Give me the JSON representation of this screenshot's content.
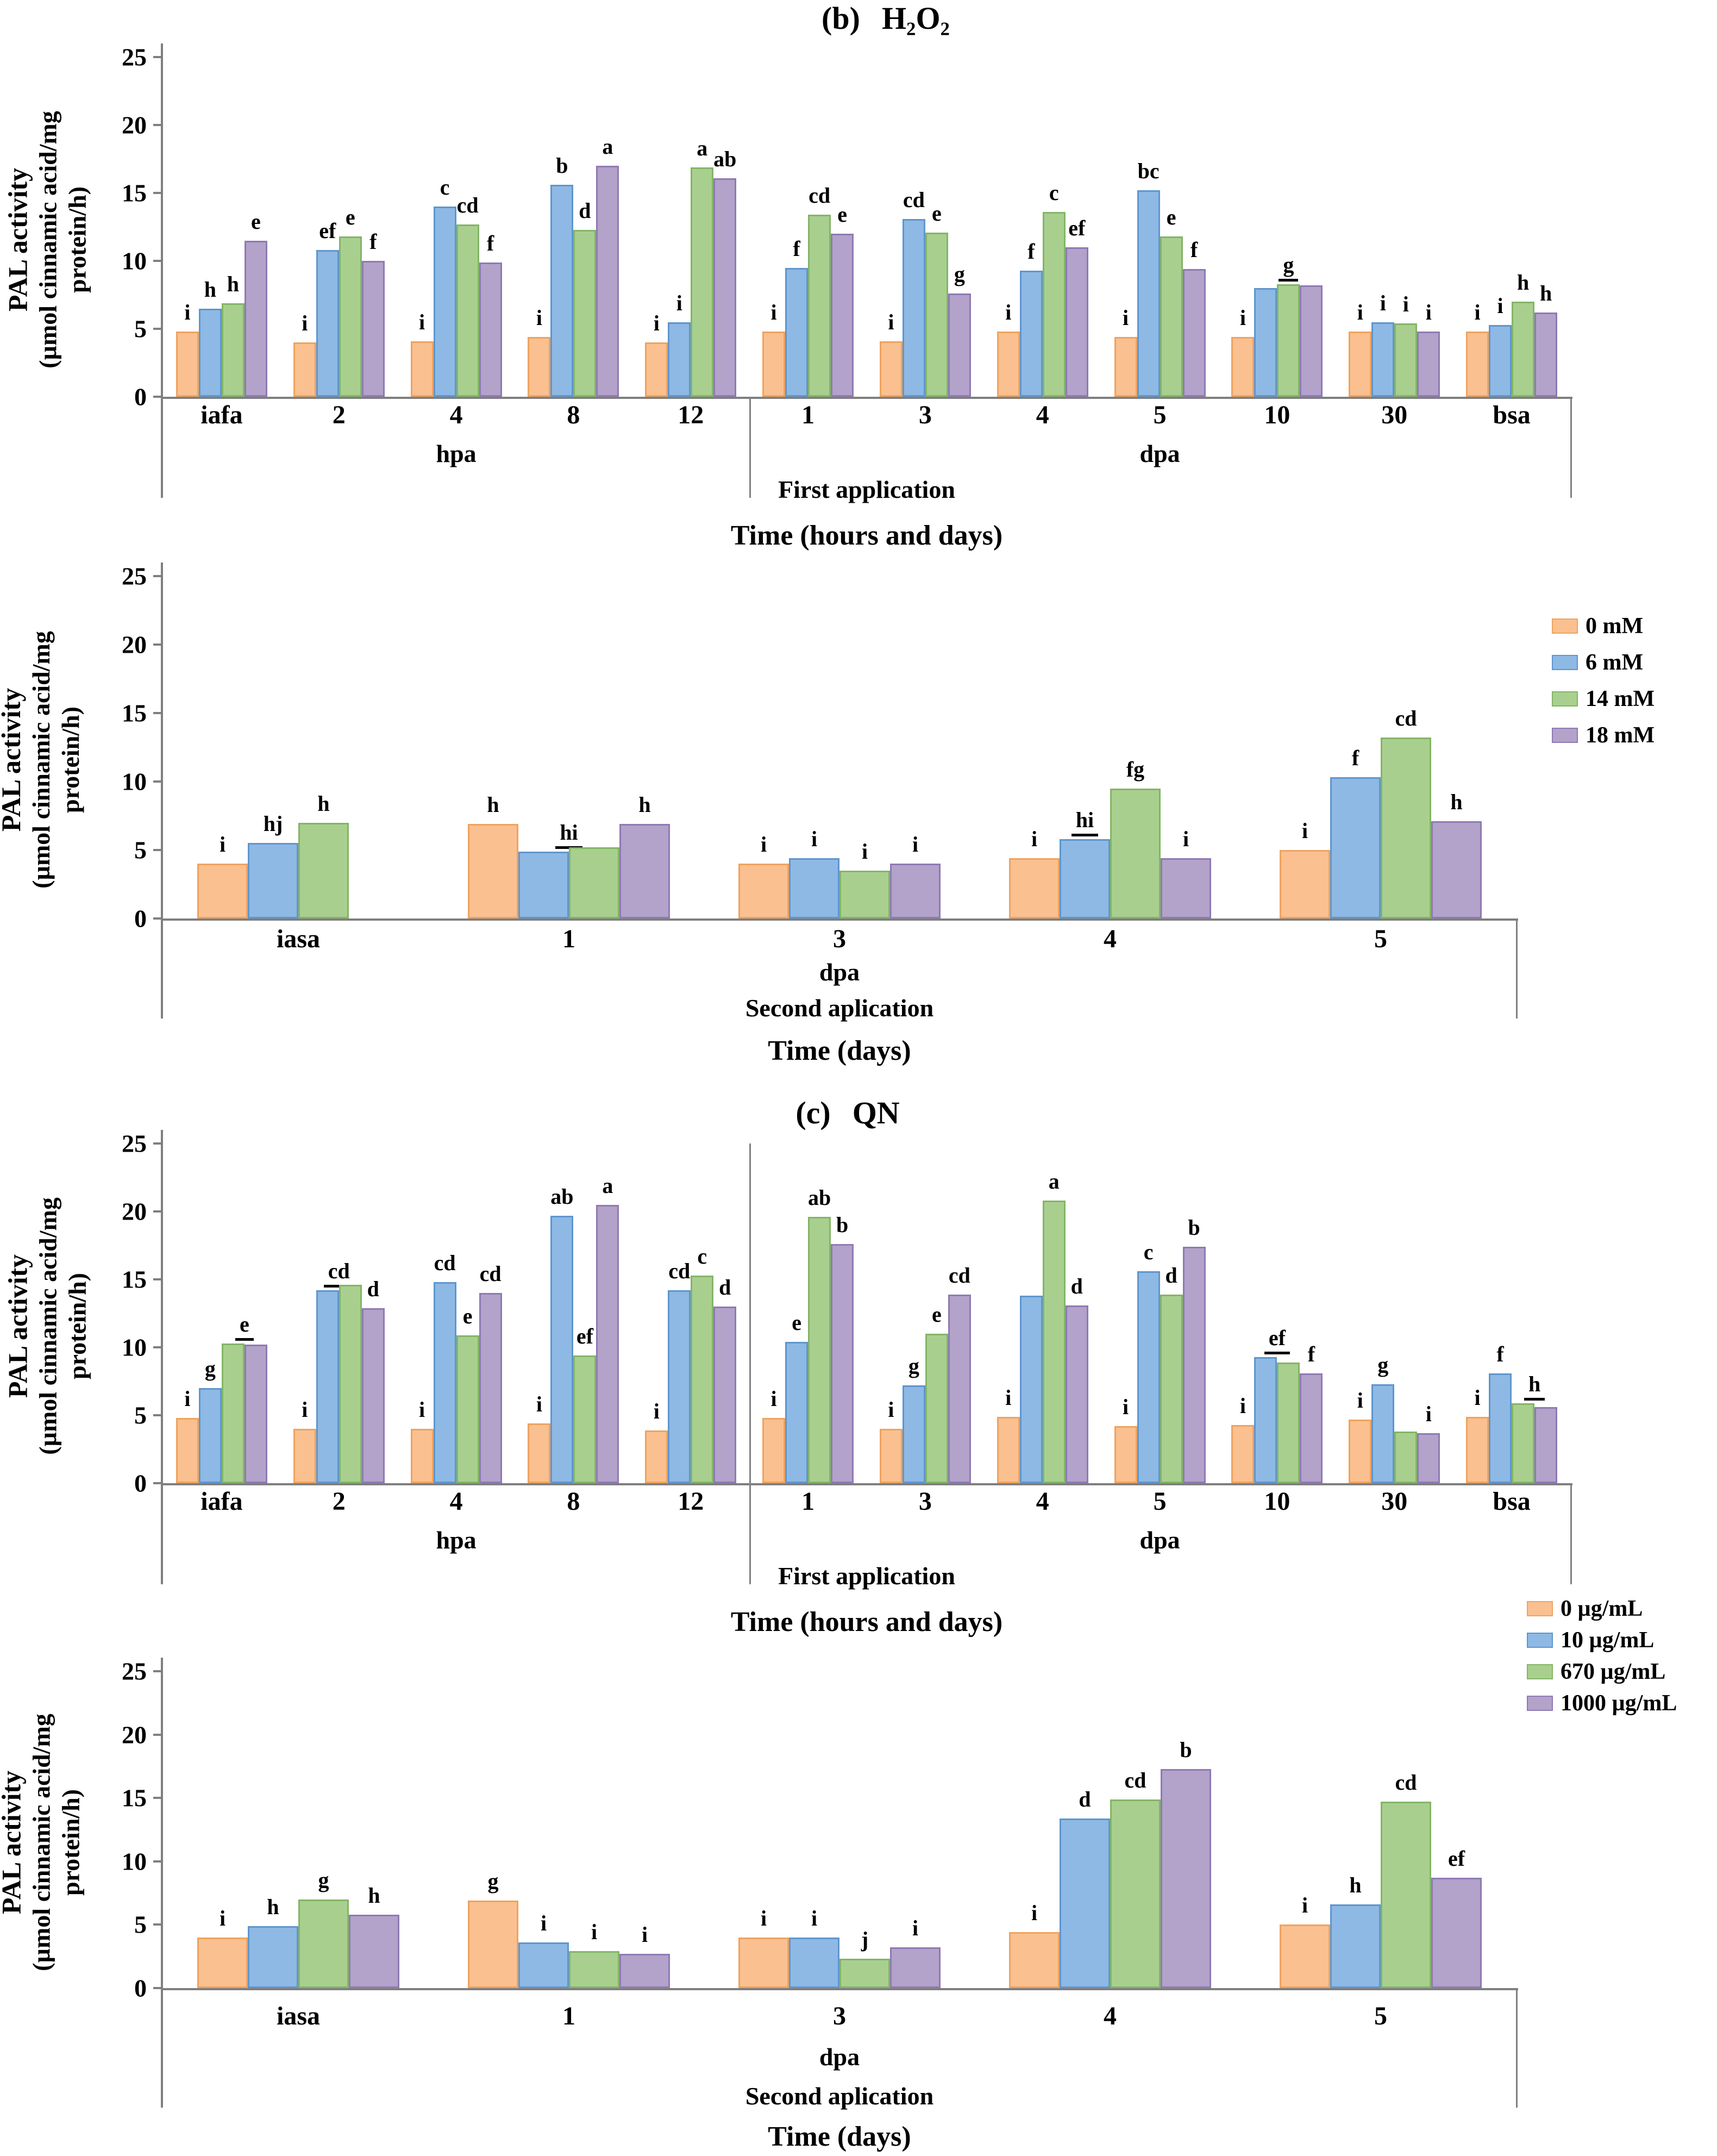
{
  "palette": {
    "fills": [
      "#FAC090",
      "#8EB9E4",
      "#A9CF8E",
      "#B3A2C9"
    ],
    "borders": [
      "#EFA35E",
      "#5E96CF",
      "#83B566",
      "#8E7AB4"
    ],
    "axis_color": "#7F7F7F",
    "text_color": "#000000"
  },
  "chart_data": [
    {
      "id": "b-first-application",
      "type": "bar",
      "panel_label": "(b)",
      "title": "H₂O₂",
      "ylabel": "PAL activity",
      "ylabel2": "(µmol cinnamic acid/mg protein/h)",
      "ylim": [
        0,
        25
      ],
      "yticks": [
        0,
        5,
        10,
        15,
        20,
        25
      ],
      "series": [
        "0 mM",
        "6 mM",
        "14 mM",
        "18 mM"
      ],
      "sections": [
        {
          "label": "hpa",
          "count": 5
        },
        {
          "label": "dpa",
          "count": 7
        }
      ],
      "application_label": "First application",
      "xlabel": "Time (hours and days)",
      "show_legend": false,
      "categories": [
        "iafa",
        "2",
        "4",
        "8",
        "12",
        "1",
        "3",
        "4",
        "5",
        "10",
        "30",
        "bsa"
      ],
      "groups": [
        {
          "cat": "iafa",
          "bars": [
            {
              "v": 4.8,
              "l": "i"
            },
            {
              "v": 6.5,
              "l": "h"
            },
            {
              "v": 6.9,
              "l": "h"
            },
            {
              "v": 11.5,
              "l": "e"
            }
          ]
        },
        {
          "cat": "2",
          "bars": [
            {
              "v": 4.0,
              "l": "i"
            },
            {
              "v": 10.8,
              "l": "ef"
            },
            {
              "v": 11.8,
              "l": "e"
            },
            {
              "v": 10.0,
              "l": "f"
            }
          ]
        },
        {
          "cat": "4",
          "bars": [
            {
              "v": 4.1,
              "l": "i"
            },
            {
              "v": 14.0,
              "l": "c"
            },
            {
              "v": 12.7,
              "l": "cd"
            },
            {
              "v": 9.9,
              "l": "f"
            }
          ]
        },
        {
          "cat": "8",
          "bars": [
            {
              "v": 4.4,
              "l": "i"
            },
            {
              "v": 15.6,
              "l": "b"
            },
            {
              "v": 12.3,
              "l": "d"
            },
            {
              "v": 17.0,
              "l": "a"
            }
          ]
        },
        {
          "cat": "12",
          "bars": [
            {
              "v": 4.0,
              "l": "i"
            },
            {
              "v": 5.5,
              "l": "i"
            },
            {
              "v": 16.9,
              "l": "a"
            },
            {
              "v": 16.1,
              "l": "ab"
            }
          ]
        },
        {
          "cat": "1",
          "bars": [
            {
              "v": 4.8,
              "l": "i"
            },
            {
              "v": 9.5,
              "l": "f"
            },
            {
              "v": 13.4,
              "l": "cd"
            },
            {
              "v": 12.0,
              "l": "e"
            }
          ]
        },
        {
          "cat": "3",
          "bars": [
            {
              "v": 4.1,
              "l": "i"
            },
            {
              "v": 13.1,
              "l": "cd"
            },
            {
              "v": 12.1,
              "l": "e"
            },
            {
              "v": 7.6,
              "l": "g"
            }
          ]
        },
        {
          "cat": "4",
          "bars": [
            {
              "v": 4.8,
              "l": "i"
            },
            {
              "v": 9.3,
              "l": "f"
            },
            {
              "v": 13.6,
              "l": "c"
            },
            {
              "v": 11.0,
              "l": "ef"
            }
          ]
        },
        {
          "cat": "5",
          "bars": [
            {
              "v": 4.4,
              "l": "i"
            },
            {
              "v": 15.2,
              "l": "bc"
            },
            {
              "v": 11.8,
              "l": "e"
            },
            {
              "v": 9.4,
              "l": "f"
            }
          ]
        },
        {
          "cat": "10",
          "bars": [
            {
              "v": 4.4,
              "l": "i"
            },
            {
              "v": 8.0
            },
            {
              "v": 8.3,
              "l": "g",
              "u": true
            },
            {
              "v": 8.2
            }
          ]
        },
        {
          "cat": "30",
          "bars": [
            {
              "v": 4.8,
              "l": "i"
            },
            {
              "v": 5.5,
              "l": "i"
            },
            {
              "v": 5.4,
              "l": "i"
            },
            {
              "v": 4.8,
              "l": "i"
            }
          ]
        },
        {
          "cat": "bsa",
          "bars": [
            {
              "v": 4.8,
              "l": "i"
            },
            {
              "v": 5.3,
              "l": "i"
            },
            {
              "v": 7.0,
              "l": "h"
            },
            {
              "v": 6.2,
              "l": "h"
            }
          ]
        }
      ]
    },
    {
      "id": "b-second-application",
      "type": "bar",
      "panel_label": "",
      "title": "",
      "ylabel": "PAL activity",
      "ylabel2": "(µmol cinnamic acid/mg protein/h)",
      "ylim": [
        0,
        25
      ],
      "yticks": [
        0,
        5,
        10,
        15,
        20,
        25
      ],
      "series": [
        "0 mM",
        "6 mM",
        "14 mM",
        "18 mM"
      ],
      "sections": [
        {
          "label": "dpa",
          "count": 5
        }
      ],
      "application_label": "Second aplication",
      "xlabel": "Time (days)",
      "show_legend": true,
      "categories": [
        "iasa",
        "1",
        "3",
        "4",
        "5"
      ],
      "groups": [
        {
          "cat": "iasa",
          "bars": [
            {
              "v": 4.0,
              "l": "i"
            },
            {
              "v": 5.5,
              "l": "hj"
            },
            {
              "v": 7.0,
              "l": "h"
            },
            null
          ]
        },
        {
          "cat": "1",
          "bars": [
            {
              "v": 6.9,
              "l": "h"
            },
            {
              "v": 4.9,
              "l": "hi",
              "u": true,
              "sp": 2
            },
            {
              "v": 5.2
            },
            {
              "v": 6.9,
              "l": "h"
            }
          ]
        },
        {
          "cat": "3",
          "bars": [
            {
              "v": 4.0,
              "l": "i"
            },
            {
              "v": 4.4,
              "l": "i"
            },
            {
              "v": 3.5,
              "l": "i"
            },
            {
              "v": 4.0,
              "l": "i"
            }
          ]
        },
        {
          "cat": "4",
          "bars": [
            {
              "v": 4.4,
              "l": "i"
            },
            {
              "v": 5.8,
              "l": "hi",
              "u": true
            },
            {
              "v": 9.5,
              "l": "fg"
            },
            {
              "v": 4.4,
              "l": "i"
            }
          ]
        },
        {
          "cat": "5",
          "bars": [
            {
              "v": 5.0,
              "l": "i"
            },
            {
              "v": 10.3,
              "l": "f"
            },
            {
              "v": 13.2,
              "l": "cd"
            },
            {
              "v": 7.1,
              "l": "h"
            }
          ]
        }
      ]
    },
    {
      "id": "c-first-application",
      "type": "bar",
      "panel_label": "(c)",
      "title": "QN",
      "ylabel": "PAL activity",
      "ylabel2": "(µmol cinnamic acid/mg protein/h)",
      "ylim": [
        0,
        25
      ],
      "yticks": [
        0,
        5,
        10,
        15,
        20,
        25
      ],
      "series": [
        "0 µg/mL",
        "10 µg/mL",
        "670 µg/mL",
        "1000 µg/mL"
      ],
      "sections": [
        {
          "label": "hpa",
          "count": 5
        },
        {
          "label": "dpa",
          "count": 7
        }
      ],
      "application_label": "First application",
      "xlabel": "Time (hours and days)",
      "show_legend": false,
      "categories": [
        "iafa",
        "2",
        "4",
        "8",
        "12",
        "1",
        "3",
        "4",
        "5",
        "10",
        "30",
        "bsa"
      ],
      "groups": [
        {
          "cat": "iafa",
          "bars": [
            {
              "v": 4.8,
              "l": "i"
            },
            {
              "v": 7.0,
              "l": "g"
            },
            {
              "v": 10.3,
              "l": "e",
              "u": true,
              "sp": 2
            },
            {
              "v": 10.2
            }
          ]
        },
        {
          "cat": "2",
          "bars": [
            {
              "v": 4.0,
              "l": "i"
            },
            {
              "v": 14.2,
              "l": "cd",
              "u": true,
              "sp": 2
            },
            {
              "v": 14.6
            },
            {
              "v": 12.9,
              "l": "d"
            }
          ]
        },
        {
          "cat": "4",
          "bars": [
            {
              "v": 4.0,
              "l": "i"
            },
            {
              "v": 14.8,
              "l": "cd"
            },
            {
              "v": 10.9,
              "l": "e"
            },
            {
              "v": 14.0,
              "l": "cd"
            }
          ]
        },
        {
          "cat": "8",
          "bars": [
            {
              "v": 4.4,
              "l": "i"
            },
            {
              "v": 19.7,
              "l": "ab"
            },
            {
              "v": 9.4,
              "l": "ef"
            },
            {
              "v": 20.5,
              "l": "a"
            }
          ]
        },
        {
          "cat": "12",
          "bars": [
            {
              "v": 3.9,
              "l": "i"
            },
            {
              "v": 14.2,
              "l": "cd"
            },
            {
              "v": 15.3,
              "l": "c"
            },
            {
              "v": 13.0,
              "l": "d"
            }
          ]
        },
        {
          "cat": "1",
          "bars": [
            {
              "v": 4.8,
              "l": "i"
            },
            {
              "v": 10.4,
              "l": "e"
            },
            {
              "v": 19.6,
              "l": "ab"
            },
            {
              "v": 17.6,
              "l": "b"
            }
          ]
        },
        {
          "cat": "3",
          "bars": [
            {
              "v": 4.0,
              "l": "i"
            },
            {
              "v": 7.2,
              "l": "g"
            },
            {
              "v": 11.0,
              "l": "e"
            },
            {
              "v": 13.9,
              "l": "cd"
            }
          ]
        },
        {
          "cat": "4",
          "bars": [
            {
              "v": 4.9,
              "l": "i"
            },
            {
              "v": 13.8
            },
            {
              "v": 20.8,
              "l": "a"
            },
            {
              "v": 13.1,
              "l": "d"
            }
          ]
        },
        {
          "cat": "5",
          "bars": [
            {
              "v": 4.2,
              "l": "i"
            },
            {
              "v": 15.6,
              "l": "c"
            },
            {
              "v": 13.9,
              "l": "d"
            },
            {
              "v": 17.4,
              "l": "b"
            }
          ]
        },
        {
          "cat": "10",
          "bars": [
            {
              "v": 4.3,
              "l": "i"
            },
            {
              "v": 9.3,
              "l": "ef",
              "u": true,
              "sp": 2
            },
            {
              "v": 8.9
            },
            {
              "v": 8.1,
              "l": "f"
            }
          ]
        },
        {
          "cat": "30",
          "bars": [
            {
              "v": 4.7,
              "l": "i"
            },
            {
              "v": 7.3,
              "l": "g"
            },
            {
              "v": 3.8
            },
            {
              "v": 3.7,
              "l": "i"
            }
          ]
        },
        {
          "cat": "bsa",
          "bars": [
            {
              "v": 4.9,
              "l": "i"
            },
            {
              "v": 8.1,
              "l": "f"
            },
            {
              "v": 5.9,
              "l": "h",
              "u": true,
              "sp": 2
            },
            {
              "v": 5.6
            }
          ]
        }
      ]
    },
    {
      "id": "c-second-application",
      "type": "bar",
      "panel_label": "",
      "title": "",
      "ylabel": "PAL activity",
      "ylabel2": "(µmol cinnamic acid/mg protein/h)",
      "ylim": [
        0,
        25
      ],
      "yticks": [
        0,
        5,
        10,
        15,
        20,
        25
      ],
      "series": [
        "0 µg/mL",
        "10 µg/mL",
        "670 µg/mL",
        "1000 µg/mL"
      ],
      "sections": [
        {
          "label": "dpa",
          "count": 5
        }
      ],
      "application_label": "Second aplication",
      "xlabel": "Time (days)",
      "show_legend": true,
      "categories": [
        "iasa",
        "1",
        "3",
        "4",
        "5"
      ],
      "groups": [
        {
          "cat": "iasa",
          "bars": [
            {
              "v": 4.0,
              "l": "i"
            },
            {
              "v": 4.9,
              "l": "h"
            },
            {
              "v": 7.0,
              "l": "g"
            },
            {
              "v": 5.8,
              "l": "h"
            }
          ]
        },
        {
          "cat": "1",
          "bars": [
            {
              "v": 6.9,
              "l": "g"
            },
            {
              "v": 3.6,
              "l": "i"
            },
            {
              "v": 2.9,
              "l": "i"
            },
            {
              "v": 2.7,
              "l": "i"
            }
          ]
        },
        {
          "cat": "3",
          "bars": [
            {
              "v": 4.0,
              "l": "i"
            },
            {
              "v": 4.0,
              "l": "i"
            },
            {
              "v": 2.3,
              "l": "j"
            },
            {
              "v": 3.2,
              "l": "i"
            }
          ]
        },
        {
          "cat": "4",
          "bars": [
            {
              "v": 4.4,
              "l": "i"
            },
            {
              "v": 13.4,
              "l": "d"
            },
            {
              "v": 14.9,
              "l": "cd"
            },
            {
              "v": 17.3,
              "l": "b"
            }
          ]
        },
        {
          "cat": "5",
          "bars": [
            {
              "v": 5.0,
              "l": "i"
            },
            {
              "v": 6.6,
              "l": "h"
            },
            {
              "v": 14.7,
              "l": "cd"
            },
            {
              "v": 8.7,
              "l": "ef"
            }
          ]
        }
      ]
    }
  ]
}
